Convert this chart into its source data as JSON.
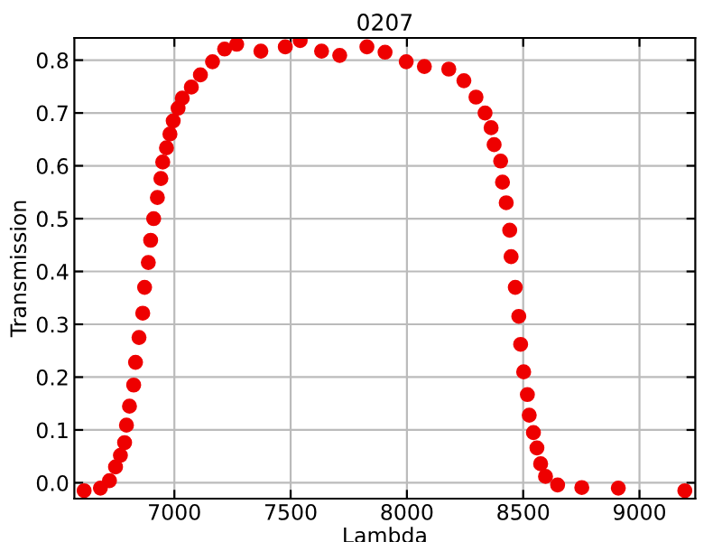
{
  "chart_data": {
    "type": "scatter",
    "title": "0207",
    "xlabel": "Lambda",
    "ylabel": "Transmission",
    "x": [
      6612,
      6682,
      6721,
      6747,
      6768,
      6786,
      6794,
      6807,
      6825,
      6833,
      6848,
      6864,
      6872,
      6888,
      6898,
      6911,
      6927,
      6942,
      6950,
      6966,
      6981,
      6995,
      7016,
      7034,
      7073,
      7112,
      7164,
      7216,
      7268,
      7372,
      7477,
      7541,
      7633,
      7711,
      7828,
      7906,
      7997,
      8075,
      8180,
      8245,
      8297,
      8336,
      8362,
      8375,
      8403,
      8411,
      8427,
      8442,
      8448,
      8466,
      8481,
      8489,
      8502,
      8518,
      8526,
      8544,
      8559,
      8575,
      8596,
      8648,
      8752,
      8909,
      9195
    ],
    "series": [
      {
        "color": "#ee0000",
        "values": [
          -0.015,
          -0.01,
          0.004,
          0.03,
          0.052,
          0.076,
          0.109,
          0.145,
          0.185,
          0.228,
          0.275,
          0.321,
          0.37,
          0.417,
          0.459,
          0.5,
          0.54,
          0.576,
          0.607,
          0.634,
          0.66,
          0.685,
          0.709,
          0.728,
          0.749,
          0.772,
          0.797,
          0.821,
          0.83,
          0.817,
          0.825,
          0.837,
          0.817,
          0.809,
          0.825,
          0.815,
          0.797,
          0.788,
          0.783,
          0.761,
          0.73,
          0.7,
          0.672,
          0.64,
          0.609,
          0.569,
          0.53,
          0.478,
          0.428,
          0.37,
          0.315,
          0.262,
          0.21,
          0.167,
          0.128,
          0.095,
          0.066,
          0.036,
          0.012,
          -0.004,
          -0.009,
          -0.01,
          -0.015
        ]
      }
    ],
    "xlim": [
      6570,
      9240
    ],
    "ylim": [
      -0.03,
      0.842
    ],
    "xticks": [
      7000,
      7500,
      8000,
      8500,
      9000
    ],
    "yticks": [
      {
        "value": 0,
        "label": "0.0"
      },
      0.1,
      0.2,
      0.3,
      0.4,
      0.5,
      0.6,
      0.7,
      0.8
    ],
    "grid": true,
    "marker": "circle",
    "legend": false
  }
}
